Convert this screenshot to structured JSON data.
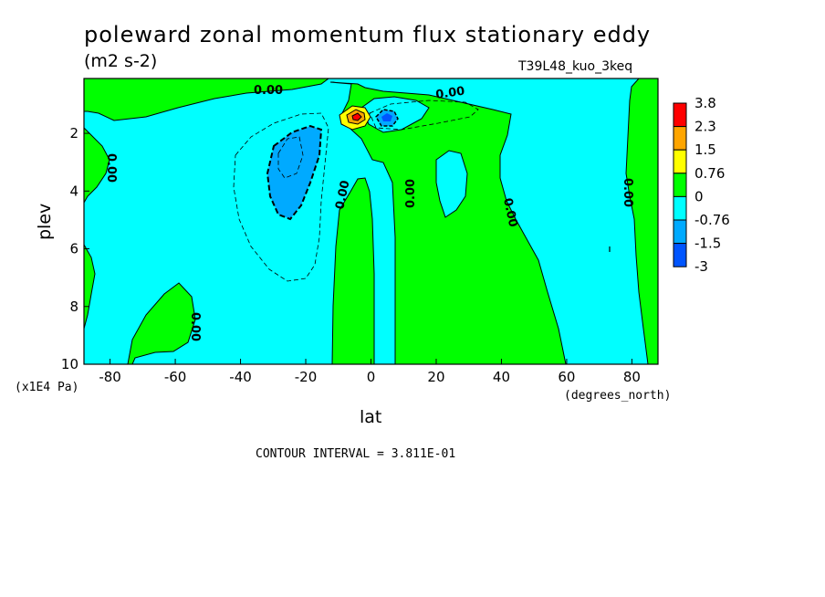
{
  "chart_data": {
    "type": "heatmap",
    "title": "poleward zonal momentum flux stationary eddy",
    "units": "(m2 s-2)",
    "run_label": "T39L48_kuo_3keq",
    "xlabel": "lat",
    "ylabel": "plev",
    "x_units": "(degrees_north)",
    "y_units": "(x1E4 Pa)",
    "xlim": [
      -88,
      88
    ],
    "ylim": [
      10,
      0.1
    ],
    "x_ticks": [
      -80,
      -60,
      -40,
      -20,
      0,
      20,
      40,
      60,
      80
    ],
    "x_tick_labels": [
      "-80",
      "-60",
      "-40",
      "-20",
      "0",
      "20",
      "40",
      "60",
      "80"
    ],
    "y_ticks": [
      2,
      4,
      6,
      8,
      10
    ],
    "y_tick_labels": [
      "2",
      "4",
      "6",
      "8",
      "10"
    ],
    "contour_interval": "CONTOUR INTERVAL = 3.811E-01",
    "contour_labels": [
      "0.00",
      "0.00",
      "0.00",
      "0.00",
      "0.00",
      "0.00",
      "0.00",
      "0.00"
    ],
    "colorbar": {
      "levels": [
        "3.8",
        "2.3",
        "1.5",
        "0.76",
        "0",
        "-0.76",
        "-1.5",
        "-3"
      ],
      "colors": [
        "#ff0000",
        "#ffa500",
        "#ffff00",
        "#00ff00",
        "#00ffff",
        "#00aaff",
        "#0055ff"
      ]
    }
  }
}
